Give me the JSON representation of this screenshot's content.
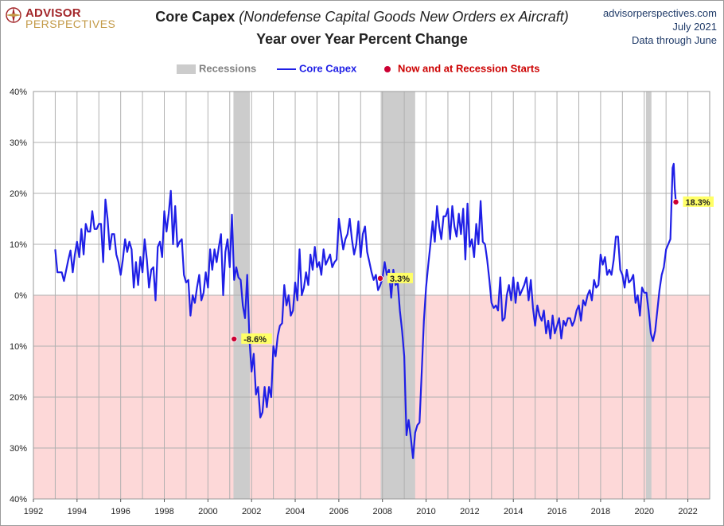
{
  "header": {
    "logo_line1": "ADVISOR",
    "logo_line2": "PERSPECTIVES",
    "title_main": "Core Capex",
    "title_sub": "(Nondefense Capital Goods New Orders ex Aircraft)",
    "title_line2": "Year over Year Percent Change",
    "site": "advisorperspectives.com",
    "date": "July 2021",
    "data_through": "Data through June"
  },
  "legend": {
    "recessions": "Recessions",
    "series": "Core Capex",
    "markers": "Now and at Recession Starts"
  },
  "colors": {
    "line": "#1f1fe6",
    "recession": "#cccccc",
    "negative_band": "#fdd8d8",
    "marker": "#cc0033",
    "label_bg": "#ffff66",
    "legend_marker_text": "#cc0000",
    "legend_recession_text": "#808080",
    "logo_red": "#a3262a",
    "logo_gold": "#c39a47"
  },
  "chart_data": {
    "type": "line",
    "title": "Core Capex (Nondefense Capital Goods New Orders ex Aircraft)",
    "subtitle": "Year over Year Percent Change",
    "xlim": [
      1992,
      2023
    ],
    "ylim": [
      -40,
      40
    ],
    "x_ticks": [
      1992,
      1994,
      1996,
      1998,
      2000,
      2002,
      2004,
      2006,
      2008,
      2010,
      2012,
      2014,
      2016,
      2018,
      2020,
      2022
    ],
    "y_ticks": [
      40,
      30,
      20,
      10,
      0,
      -10,
      -20,
      -30,
      -40
    ],
    "y_tick_labels": [
      "40%",
      "30%",
      "20%",
      "10%",
      "0%",
      "10%",
      "20%",
      "30%",
      "40%"
    ],
    "grid": true,
    "legend_position": "top-center",
    "recessions": [
      [
        2001.17,
        2001.92
      ],
      [
        2007.92,
        2009.5
      ],
      [
        2020.08,
        2020.33
      ]
    ],
    "series": [
      {
        "name": "Core Capex",
        "points": [
          [
            1993.0,
            9.0
          ],
          [
            1993.1,
            4.5
          ],
          [
            1993.3,
            4.5
          ],
          [
            1993.4,
            2.8
          ],
          [
            1993.6,
            7.0
          ],
          [
            1993.7,
            8.8
          ],
          [
            1993.8,
            4.5
          ],
          [
            1993.9,
            8.0
          ],
          [
            1994.0,
            10.5
          ],
          [
            1994.1,
            7.5
          ],
          [
            1994.2,
            13.0
          ],
          [
            1994.3,
            8.0
          ],
          [
            1994.4,
            14.0
          ],
          [
            1994.5,
            12.5
          ],
          [
            1994.6,
            12.5
          ],
          [
            1994.7,
            16.5
          ],
          [
            1994.8,
            13.0
          ],
          [
            1994.9,
            13.0
          ],
          [
            1995.0,
            14.0
          ],
          [
            1995.1,
            14.0
          ],
          [
            1995.2,
            6.5
          ],
          [
            1995.3,
            18.8
          ],
          [
            1995.4,
            15.0
          ],
          [
            1995.5,
            9.0
          ],
          [
            1995.6,
            12.0
          ],
          [
            1995.7,
            12.0
          ],
          [
            1995.8,
            8.0
          ],
          [
            1995.9,
            6.5
          ],
          [
            1996.0,
            4.0
          ],
          [
            1996.1,
            7.0
          ],
          [
            1996.2,
            11.0
          ],
          [
            1996.3,
            8.5
          ],
          [
            1996.4,
            10.5
          ],
          [
            1996.5,
            9.0
          ],
          [
            1996.6,
            1.5
          ],
          [
            1996.7,
            6.5
          ],
          [
            1996.8,
            2.0
          ],
          [
            1996.9,
            7.5
          ],
          [
            1997.0,
            4.5
          ],
          [
            1997.1,
            11.0
          ],
          [
            1997.2,
            7.0
          ],
          [
            1997.3,
            1.5
          ],
          [
            1997.4,
            5.0
          ],
          [
            1997.5,
            5.5
          ],
          [
            1997.6,
            -1.0
          ],
          [
            1997.7,
            9.5
          ],
          [
            1997.8,
            10.5
          ],
          [
            1997.9,
            7.5
          ],
          [
            1998.0,
            16.5
          ],
          [
            1998.1,
            12.5
          ],
          [
            1998.2,
            16.0
          ],
          [
            1998.3,
            20.5
          ],
          [
            1998.4,
            10.0
          ],
          [
            1998.5,
            17.5
          ],
          [
            1998.6,
            9.5
          ],
          [
            1998.7,
            10.5
          ],
          [
            1998.8,
            11.0
          ],
          [
            1998.9,
            4.0
          ],
          [
            1999.0,
            2.5
          ],
          [
            1999.1,
            3.0
          ],
          [
            1999.2,
            -4.0
          ],
          [
            1999.3,
            0.0
          ],
          [
            1999.4,
            -1.5
          ],
          [
            1999.5,
            1.5
          ],
          [
            1999.6,
            4.0
          ],
          [
            1999.7,
            -1.0
          ],
          [
            1999.8,
            0.5
          ],
          [
            1999.9,
            4.5
          ],
          [
            2000.0,
            1.5
          ],
          [
            2000.1,
            9.0
          ],
          [
            2000.2,
            5.0
          ],
          [
            2000.3,
            9.0
          ],
          [
            2000.4,
            6.5
          ],
          [
            2000.5,
            9.5
          ],
          [
            2000.6,
            12.0
          ],
          [
            2000.7,
            0.0
          ],
          [
            2000.8,
            8.5
          ],
          [
            2000.9,
            11.0
          ],
          [
            2001.0,
            5.5
          ],
          [
            2001.1,
            15.8
          ],
          [
            2001.2,
            3.0
          ],
          [
            2001.3,
            5.5
          ],
          [
            2001.4,
            3.5
          ],
          [
            2001.5,
            3.0
          ],
          [
            2001.6,
            -2.0
          ],
          [
            2001.7,
            -4.5
          ],
          [
            2001.8,
            4.0
          ],
          [
            2001.9,
            -8.6
          ],
          [
            2002.0,
            -15.0
          ],
          [
            2002.1,
            -11.5
          ],
          [
            2002.2,
            -19.5
          ],
          [
            2002.3,
            -18.0
          ],
          [
            2002.4,
            -24.0
          ],
          [
            2002.5,
            -23.0
          ],
          [
            2002.6,
            -18.0
          ],
          [
            2002.7,
            -22.0
          ],
          [
            2002.8,
            -18.0
          ],
          [
            2002.9,
            -20.0
          ],
          [
            2003.0,
            -10.0
          ],
          [
            2003.1,
            -12.0
          ],
          [
            2003.2,
            -8.0
          ],
          [
            2003.3,
            -6.0
          ],
          [
            2003.4,
            -5.5
          ],
          [
            2003.5,
            2.0
          ],
          [
            2003.6,
            -2.0
          ],
          [
            2003.7,
            0.0
          ],
          [
            2003.8,
            -4.0
          ],
          [
            2003.9,
            -3.0
          ],
          [
            2004.0,
            2.5
          ],
          [
            2004.1,
            -1.0
          ],
          [
            2004.2,
            9.0
          ],
          [
            2004.3,
            0.0
          ],
          [
            2004.4,
            1.5
          ],
          [
            2004.5,
            4.5
          ],
          [
            2004.6,
            2.0
          ],
          [
            2004.7,
            8.0
          ],
          [
            2004.8,
            5.0
          ],
          [
            2004.9,
            9.5
          ],
          [
            2005.0,
            5.5
          ],
          [
            2005.1,
            6.5
          ],
          [
            2005.2,
            4.0
          ],
          [
            2005.3,
            9.0
          ],
          [
            2005.4,
            6.0
          ],
          [
            2005.5,
            7.0
          ],
          [
            2005.6,
            8.0
          ],
          [
            2005.7,
            5.5
          ],
          [
            2005.8,
            6.5
          ],
          [
            2005.9,
            7.0
          ],
          [
            2006.0,
            15.0
          ],
          [
            2006.1,
            12.0
          ],
          [
            2006.2,
            9.0
          ],
          [
            2006.3,
            11.0
          ],
          [
            2006.4,
            12.0
          ],
          [
            2006.5,
            15.0
          ],
          [
            2006.6,
            11.0
          ],
          [
            2006.7,
            8.0
          ],
          [
            2006.8,
            10.0
          ],
          [
            2006.9,
            14.5
          ],
          [
            2007.0,
            7.5
          ],
          [
            2007.1,
            12.0
          ],
          [
            2007.2,
            13.5
          ],
          [
            2007.3,
            8.5
          ],
          [
            2007.4,
            6.5
          ],
          [
            2007.5,
            4.5
          ],
          [
            2007.6,
            3.0
          ],
          [
            2007.7,
            4.0
          ],
          [
            2007.8,
            1.0
          ],
          [
            2007.9,
            2.0
          ],
          [
            2008.0,
            3.3
          ],
          [
            2008.1,
            6.5
          ],
          [
            2008.2,
            4.0
          ],
          [
            2008.3,
            5.0
          ],
          [
            2008.4,
            -0.5
          ],
          [
            2008.5,
            5.0
          ],
          [
            2008.6,
            2.0
          ],
          [
            2008.7,
            2.5
          ],
          [
            2008.8,
            -3.0
          ],
          [
            2008.9,
            -7.0
          ],
          [
            2009.0,
            -12.0
          ],
          [
            2009.1,
            -27.5
          ],
          [
            2009.2,
            -24.5
          ],
          [
            2009.3,
            -28.0
          ],
          [
            2009.4,
            -32.0
          ],
          [
            2009.5,
            -27.0
          ],
          [
            2009.6,
            -25.5
          ],
          [
            2009.7,
            -25.0
          ],
          [
            2009.8,
            -15.0
          ],
          [
            2009.9,
            -5.0
          ],
          [
            2010.0,
            1.5
          ],
          [
            2010.1,
            6.0
          ],
          [
            2010.2,
            10.0
          ],
          [
            2010.3,
            14.5
          ],
          [
            2010.4,
            10.5
          ],
          [
            2010.5,
            17.5
          ],
          [
            2010.6,
            13.5
          ],
          [
            2010.7,
            11.0
          ],
          [
            2010.8,
            15.5
          ],
          [
            2010.9,
            15.5
          ],
          [
            2011.0,
            17.0
          ],
          [
            2011.1,
            11.0
          ],
          [
            2011.2,
            17.5
          ],
          [
            2011.3,
            13.5
          ],
          [
            2011.4,
            11.5
          ],
          [
            2011.5,
            16.0
          ],
          [
            2011.6,
            12.0
          ],
          [
            2011.7,
            17.0
          ],
          [
            2011.8,
            7.0
          ],
          [
            2011.9,
            18.0
          ],
          [
            2012.0,
            9.5
          ],
          [
            2012.1,
            11.0
          ],
          [
            2012.2,
            7.5
          ],
          [
            2012.3,
            14.0
          ],
          [
            2012.4,
            10.0
          ],
          [
            2012.5,
            18.5
          ],
          [
            2012.6,
            10.5
          ],
          [
            2012.7,
            10.0
          ],
          [
            2012.8,
            7.0
          ],
          [
            2012.9,
            3.0
          ],
          [
            2013.0,
            -1.5
          ],
          [
            2013.1,
            -2.5
          ],
          [
            2013.2,
            -2.0
          ],
          [
            2013.3,
            -3.0
          ],
          [
            2013.4,
            3.5
          ],
          [
            2013.5,
            -5.0
          ],
          [
            2013.6,
            -4.5
          ],
          [
            2013.7,
            0.0
          ],
          [
            2013.8,
            2.0
          ],
          [
            2013.9,
            -1.0
          ],
          [
            2014.0,
            3.5
          ],
          [
            2014.1,
            -1.5
          ],
          [
            2014.2,
            2.5
          ],
          [
            2014.3,
            0.0
          ],
          [
            2014.4,
            1.0
          ],
          [
            2014.5,
            2.0
          ],
          [
            2014.6,
            3.5
          ],
          [
            2014.7,
            -1.0
          ],
          [
            2014.8,
            3.0
          ],
          [
            2014.9,
            -2.5
          ],
          [
            2015.0,
            -6.0
          ],
          [
            2015.1,
            -2.0
          ],
          [
            2015.2,
            -4.0
          ],
          [
            2015.3,
            -5.0
          ],
          [
            2015.4,
            -3.0
          ],
          [
            2015.5,
            -7.5
          ],
          [
            2015.6,
            -5.0
          ],
          [
            2015.7,
            -8.5
          ],
          [
            2015.8,
            -4.0
          ],
          [
            2015.9,
            -7.5
          ],
          [
            2016.0,
            -6.0
          ],
          [
            2016.1,
            -4.5
          ],
          [
            2016.2,
            -8.5
          ],
          [
            2016.3,
            -5.0
          ],
          [
            2016.4,
            -6.0
          ],
          [
            2016.5,
            -4.5
          ],
          [
            2016.6,
            -4.5
          ],
          [
            2016.7,
            -6.0
          ],
          [
            2016.8,
            -5.0
          ],
          [
            2016.9,
            -3.0
          ],
          [
            2017.0,
            -2.0
          ],
          [
            2017.1,
            -5.0
          ],
          [
            2017.2,
            -1.0
          ],
          [
            2017.3,
            -2.0
          ],
          [
            2017.4,
            0.0
          ],
          [
            2017.5,
            1.0
          ],
          [
            2017.6,
            -1.0
          ],
          [
            2017.7,
            3.0
          ],
          [
            2017.8,
            1.5
          ],
          [
            2017.9,
            2.0
          ],
          [
            2018.0,
            8.0
          ],
          [
            2018.1,
            6.0
          ],
          [
            2018.2,
            7.5
          ],
          [
            2018.3,
            4.0
          ],
          [
            2018.4,
            5.0
          ],
          [
            2018.5,
            4.0
          ],
          [
            2018.6,
            7.0
          ],
          [
            2018.7,
            11.5
          ],
          [
            2018.8,
            11.5
          ],
          [
            2018.9,
            5.0
          ],
          [
            2019.0,
            4.0
          ],
          [
            2019.1,
            1.5
          ],
          [
            2019.2,
            5.0
          ],
          [
            2019.3,
            2.5
          ],
          [
            2019.4,
            3.0
          ],
          [
            2019.5,
            4.0
          ],
          [
            2019.6,
            -1.5
          ],
          [
            2019.7,
            0.0
          ],
          [
            2019.8,
            -4.0
          ],
          [
            2019.9,
            1.5
          ],
          [
            2020.0,
            0.5
          ],
          [
            2020.1,
            0.5
          ],
          [
            2020.2,
            -3.0
          ],
          [
            2020.3,
            -7.5
          ],
          [
            2020.4,
            -9.0
          ],
          [
            2020.5,
            -7.0
          ],
          [
            2020.6,
            -3.0
          ],
          [
            2020.7,
            1.0
          ],
          [
            2020.8,
            4.0
          ],
          [
            2020.9,
            5.5
          ],
          [
            2021.0,
            9.0
          ],
          [
            2021.1,
            10.0
          ],
          [
            2021.2,
            11.0
          ],
          [
            2021.3,
            25.0
          ],
          [
            2021.35,
            25.8
          ],
          [
            2021.4,
            21.0
          ],
          [
            2021.45,
            18.3
          ]
        ]
      }
    ],
    "markers": [
      {
        "x": 2001.2,
        "y": -8.6,
        "label": "-8.6%"
      },
      {
        "x": 2007.9,
        "y": 3.3,
        "label": "3.3%"
      },
      {
        "x": 2021.45,
        "y": 18.3,
        "label": "18.3%"
      }
    ]
  }
}
